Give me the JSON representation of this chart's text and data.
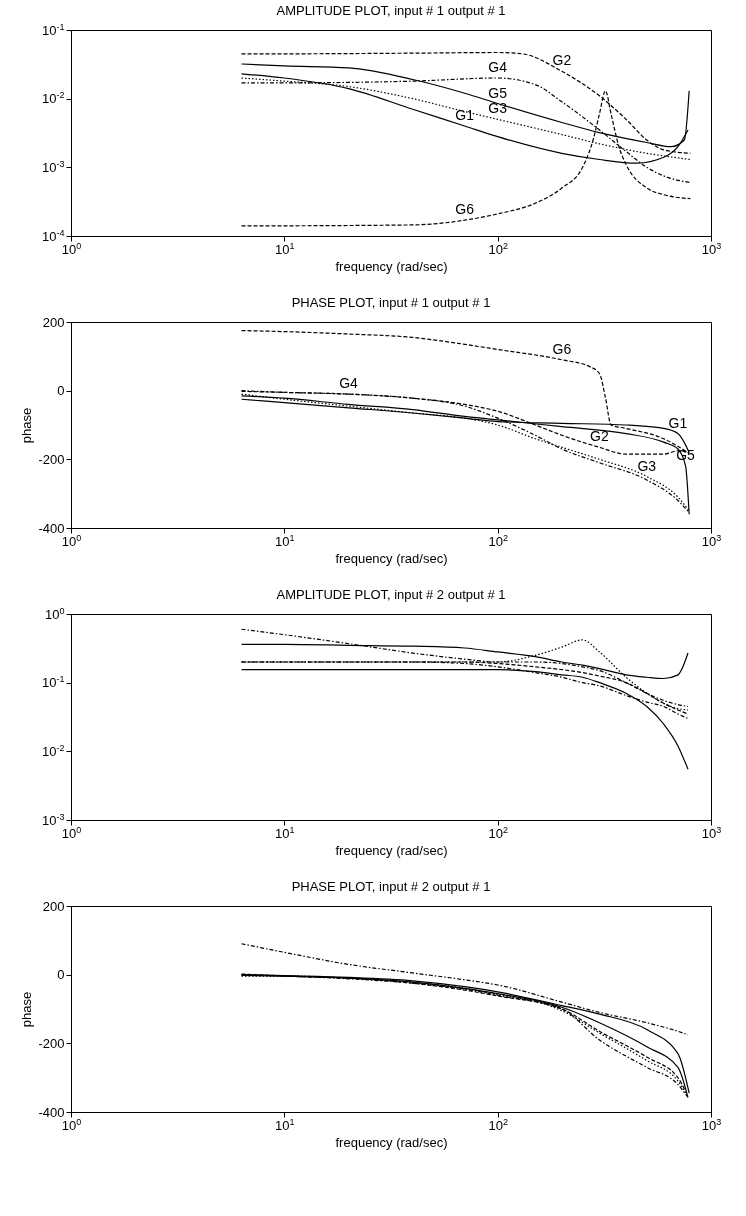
{
  "chart_data": [
    {
      "type": "line",
      "title": "AMPLITUDE PLOT, input # 1 output # 1",
      "xlabel": "frequency (rad/sec)",
      "log": "xy",
      "xlim": [
        1,
        1000
      ],
      "xticks": [
        {
          "value": 1,
          "label": "10$^{0}$"
        },
        {
          "value": 10,
          "label": "10$^{1}$"
        },
        {
          "value": 100,
          "label": "10$^{2}$"
        },
        {
          "value": 1000,
          "label": "10$^{3}$"
        }
      ],
      "ylim": [
        0.0001,
        0.1
      ],
      "yticks": [
        {
          "value": 0.0001,
          "label": "10$^{-4}$"
        },
        {
          "value": 0.001,
          "label": "10$^{-3}$"
        },
        {
          "value": 0.01,
          "label": "10$^{-2}$"
        },
        {
          "value": 0.1,
          "label": "10$^{-1}$"
        }
      ],
      "series": [
        {
          "color": "#000000",
          "line_style": "solid",
          "x": [
            6.3,
            10,
            20,
            40,
            70,
            100,
            200,
            300,
            450,
            600,
            700,
            780
          ],
          "values": [
            0.023,
            0.02,
            0.014,
            0.007,
            0.004,
            0.0028,
            0.0016,
            0.0013,
            0.00115,
            0.0014,
            0.002,
            0.0035
          ]
        },
        {
          "color": "#000000",
          "line_style": "dashed",
          "x": [
            6.3,
            10,
            40,
            100,
            130,
            200,
            300,
            400,
            500,
            600,
            800
          ],
          "values": [
            0.045,
            0.045,
            0.046,
            0.047,
            0.045,
            0.025,
            0.011,
            0.005,
            0.0025,
            0.0018,
            0.0016
          ]
        },
        {
          "color": "#000000",
          "line_style": "dotted",
          "x": [
            6.3,
            10,
            20,
            40,
            70,
            100,
            200,
            300,
            500,
            800
          ],
          "values": [
            0.02,
            0.018,
            0.015,
            0.01,
            0.0065,
            0.005,
            0.003,
            0.0022,
            0.0016,
            0.0013
          ]
        },
        {
          "color": "#000000",
          "line_style": "dashdot",
          "x": [
            6.3,
            10,
            40,
            100,
            150,
            200,
            300,
            400,
            500,
            600,
            800
          ],
          "values": [
            0.017,
            0.017,
            0.018,
            0.02,
            0.016,
            0.009,
            0.0035,
            0.0017,
            0.001,
            0.00075,
            0.0006
          ]
        },
        {
          "color": "#000000",
          "line_style": "solid",
          "x": [
            6.3,
            10,
            20,
            40,
            70,
            100,
            200,
            300,
            500,
            650,
            750,
            790
          ],
          "values": [
            0.032,
            0.03,
            0.028,
            0.019,
            0.012,
            0.0085,
            0.0045,
            0.0032,
            0.0023,
            0.002,
            0.0025,
            0.013
          ]
        },
        {
          "color": "#000000",
          "line_style": "dashed",
          "x": [
            6.3,
            40,
            70,
            100,
            150,
            200,
            250,
            280,
            300,
            320,
            340,
            370,
            400,
            500,
            600,
            800
          ],
          "values": [
            0.00014,
            0.000145,
            0.00017,
            0.00021,
            0.0003,
            0.0005,
            0.001,
            0.0025,
            0.006,
            0.013,
            0.006,
            0.002,
            0.0011,
            0.0005,
            0.0004,
            0.00035
          ]
        }
      ],
      "annotations": [
        {
          "text": "G1",
          "x": 70,
          "y": 0.004
        },
        {
          "text": "G2",
          "x": 200,
          "y": 0.025
        },
        {
          "text": "G3",
          "x": 100,
          "y": 0.005
        },
        {
          "text": "G4",
          "x": 100,
          "y": 0.02
        },
        {
          "text": "G5",
          "x": 100,
          "y": 0.0085
        },
        {
          "text": "G6",
          "x": 70,
          "y": 0.00017
        }
      ]
    },
    {
      "type": "line",
      "title": "PHASE PLOT, input # 1 output # 1",
      "xlabel": "frequency (rad/sec)",
      "ylabel": "phase",
      "log": "x",
      "xlim": [
        1,
        1000
      ],
      "xticks": [
        {
          "value": 1,
          "label": "10$^{0}$"
        },
        {
          "value": 10,
          "label": "10$^{1}$"
        },
        {
          "value": 100,
          "label": "10$^{2}$"
        },
        {
          "value": 1000,
          "label": "10$^{3}$"
        }
      ],
      "ylim": [
        -400,
        200
      ],
      "yticks": [
        -400,
        -200,
        0,
        200
      ],
      "series": [
        {
          "color": "#000000",
          "line_style": "solid",
          "x": [
            6.3,
            10,
            20,
            40,
            70,
            100,
            200,
            400,
            600,
            700,
            790
          ],
          "values": [
            -25,
            -35,
            -50,
            -65,
            -80,
            -90,
            -95,
            -100,
            -110,
            -125,
            -180
          ]
        },
        {
          "color": "#000000",
          "line_style": "dashed",
          "x": [
            6.3,
            10,
            20,
            40,
            70,
            100,
            150,
            200,
            300,
            400,
            600,
            700,
            790
          ],
          "values": [
            -2,
            -5,
            -10,
            -22,
            -40,
            -60,
            -100,
            -130,
            -165,
            -185,
            -185,
            -175,
            -180
          ]
        },
        {
          "color": "#000000",
          "line_style": "dotted",
          "x": [
            6.3,
            10,
            20,
            40,
            70,
            100,
            150,
            200,
            300,
            500,
            700,
            790
          ],
          "values": [
            -10,
            -25,
            -45,
            -65,
            -80,
            -100,
            -140,
            -165,
            -200,
            -250,
            -310,
            -350
          ]
        },
        {
          "color": "#000000",
          "line_style": "dashdot",
          "x": [
            6.3,
            10,
            20,
            40,
            70,
            100,
            150,
            200,
            300,
            500,
            700,
            790
          ],
          "values": [
            0,
            -5,
            -10,
            -22,
            -45,
            -80,
            -130,
            -170,
            -210,
            -260,
            -320,
            -355
          ]
        },
        {
          "color": "#000000",
          "line_style": "solid",
          "x": [
            6.3,
            10,
            20,
            40,
            70,
            100,
            200,
            400,
            600,
            700,
            760,
            790
          ],
          "values": [
            -15,
            -22,
            -40,
            -55,
            -75,
            -85,
            -105,
            -125,
            -150,
            -170,
            -220,
            -360
          ]
        },
        {
          "color": "#000000",
          "line_style": "dashed",
          "x": [
            6.3,
            10,
            20,
            40,
            70,
            100,
            200,
            270,
            300,
            320,
            340,
            400,
            600,
            780
          ],
          "values": [
            175,
            172,
            165,
            155,
            135,
            120,
            90,
            70,
            50,
            -20,
            -100,
            -110,
            -140,
            -180
          ]
        }
      ],
      "annotations": [
        {
          "text": "G1",
          "x": 700,
          "y": -125
        },
        {
          "text": "G2",
          "x": 300,
          "y": -165
        },
        {
          "text": "G3",
          "x": 500,
          "y": -250
        },
        {
          "text": "G4",
          "x": 20,
          "y": -10
        },
        {
          "text": "G5",
          "x": 760,
          "y": -220
        },
        {
          "text": "G6",
          "x": 200,
          "y": 90
        }
      ]
    },
    {
      "type": "line",
      "title": "AMPLITUDE PLOT, input # 2 output # 1",
      "xlabel": "frequency (rad/sec)",
      "log": "xy",
      "xlim": [
        1,
        1000
      ],
      "xticks": [
        {
          "value": 1,
          "label": "10$^{0}$"
        },
        {
          "value": 10,
          "label": "10$^{1}$"
        },
        {
          "value": 100,
          "label": "10$^{2}$"
        },
        {
          "value": 1000,
          "label": "10$^{3}$"
        }
      ],
      "ylim": [
        0.001,
        1
      ],
      "yticks": [
        {
          "value": 0.001,
          "label": "10$^{-3}$"
        },
        {
          "value": 0.01,
          "label": "10$^{-2}$"
        },
        {
          "value": 0.1,
          "label": "10$^{-1}$"
        },
        {
          "value": 1,
          "label": "10$^{0}$"
        }
      ],
      "x": [
        6.3,
        10,
        20,
        40,
        70,
        100,
        150,
        200,
        250,
        300,
        400,
        500,
        600,
        700,
        780
      ],
      "series": [
        {
          "color": "#000000",
          "line_style": "dashdot",
          "values": [
            0.6,
            0.5,
            0.37,
            0.27,
            0.22,
            0.2,
            0.2,
            0.19,
            0.17,
            0.15,
            0.1,
            0.07,
            0.055,
            0.048,
            0.045
          ]
        },
        {
          "color": "#000000",
          "line_style": "solid",
          "values": [
            0.36,
            0.36,
            0.35,
            0.34,
            0.32,
            0.28,
            0.24,
            0.2,
            0.18,
            0.16,
            0.13,
            0.12,
            0.115,
            0.13,
            0.27
          ]
        },
        {
          "color": "#000000",
          "line_style": "dotted",
          "values": [
            0.2,
            0.2,
            0.2,
            0.2,
            0.2,
            0.2,
            0.25,
            0.33,
            0.42,
            0.28,
            0.12,
            0.07,
            0.05,
            0.042,
            0.04
          ]
        },
        {
          "color": "#000000",
          "line_style": "dashed",
          "values": [
            0.2,
            0.2,
            0.2,
            0.2,
            0.2,
            0.19,
            0.17,
            0.155,
            0.14,
            0.125,
            0.1,
            0.07,
            0.05,
            0.04,
            0.035
          ]
        },
        {
          "color": "#000000",
          "line_style": "dashdot",
          "values": [
            0.2,
            0.2,
            0.2,
            0.2,
            0.19,
            0.17,
            0.14,
            0.12,
            0.1,
            0.09,
            0.065,
            0.052,
            0.045,
            0.035,
            0.03
          ]
        },
        {
          "color": "#000000",
          "line_style": "solid",
          "values": [
            0.155,
            0.155,
            0.155,
            0.155,
            0.155,
            0.155,
            0.145,
            0.13,
            0.12,
            0.1,
            0.07,
            0.045,
            0.025,
            0.012,
            0.0055
          ]
        }
      ]
    },
    {
      "type": "line",
      "title": "PHASE PLOT, input # 2 output # 1",
      "xlabel": "frequency (rad/sec)",
      "ylabel": "phase",
      "log": "x",
      "xlim": [
        1,
        1000
      ],
      "xticks": [
        {
          "value": 1,
          "label": "10$^{0}$"
        },
        {
          "value": 10,
          "label": "10$^{1}$"
        },
        {
          "value": 100,
          "label": "10$^{2}$"
        },
        {
          "value": 1000,
          "label": "10$^{3}$"
        }
      ],
      "ylim": [
        -400,
        200
      ],
      "yticks": [
        -400,
        -200,
        0,
        200
      ],
      "x": [
        6.3,
        10,
        20,
        40,
        70,
        100,
        200,
        300,
        500,
        700,
        780
      ],
      "series": [
        {
          "color": "#000000",
          "line_style": "dashdot",
          "values": [
            90,
            65,
            30,
            5,
            -15,
            -30,
            -80,
            -110,
            -140,
            -165,
            -175
          ]
        },
        {
          "color": "#000000",
          "line_style": "solid",
          "x": [
            6.3,
            10,
            20,
            40,
            70,
            100,
            200,
            300,
            500,
            700,
            790
          ],
          "values": [
            0,
            -3,
            -8,
            -18,
            -35,
            -50,
            -90,
            -115,
            -160,
            -230,
            -345
          ]
        },
        {
          "color": "#000000",
          "line_style": "solid",
          "x": [
            6.3,
            10,
            20,
            40,
            70,
            100,
            200,
            300,
            500,
            700,
            780
          ],
          "values": [
            -2,
            -4,
            -10,
            -22,
            -40,
            -55,
            -95,
            -140,
            -210,
            -270,
            -358
          ]
        },
        {
          "color": "#000000",
          "line_style": "dashed",
          "x": [
            6.3,
            10,
            20,
            40,
            70,
            100,
            200,
            300,
            500,
            700,
            760
          ],
          "values": [
            2,
            -4,
            -10,
            -25,
            -45,
            -62,
            -100,
            -165,
            -240,
            -300,
            -340
          ]
        },
        {
          "color": "#000000",
          "line_style": "dashdot",
          "x": [
            6.3,
            10,
            20,
            40,
            70,
            100,
            200,
            300,
            500,
            700,
            775
          ],
          "values": [
            0,
            -4,
            -12,
            -25,
            -42,
            -60,
            -100,
            -190,
            -270,
            -320,
            -355
          ]
        },
        {
          "color": "#000000",
          "line_style": "dotted",
          "x": [
            6.3,
            10,
            20,
            40,
            70,
            100,
            200,
            300,
            500,
            700,
            770
          ],
          "values": [
            -4,
            -4,
            -10,
            -22,
            -40,
            -58,
            -105,
            -170,
            -250,
            -310,
            -350
          ]
        }
      ]
    }
  ]
}
